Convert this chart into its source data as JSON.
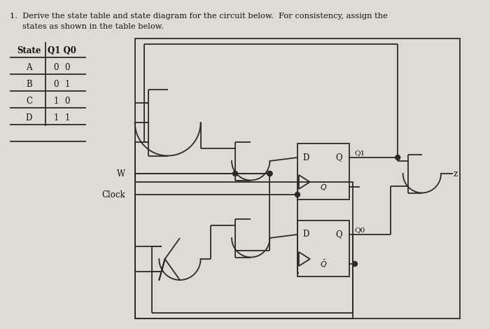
{
  "bg_color": "#dedad4",
  "line_color": "#2a2a2a",
  "text_color": "#111111",
  "title_line1": "1.  Derive the state table and state diagram for the circuit below.  For consistency, assign the",
  "title_line2": "     states as shown in the table below.",
  "table_states": [
    "A",
    "B",
    "C",
    "D"
  ],
  "table_q1": [
    "0",
    "0",
    "1",
    "1"
  ],
  "table_q0": [
    "0",
    "1",
    "0",
    "1"
  ]
}
